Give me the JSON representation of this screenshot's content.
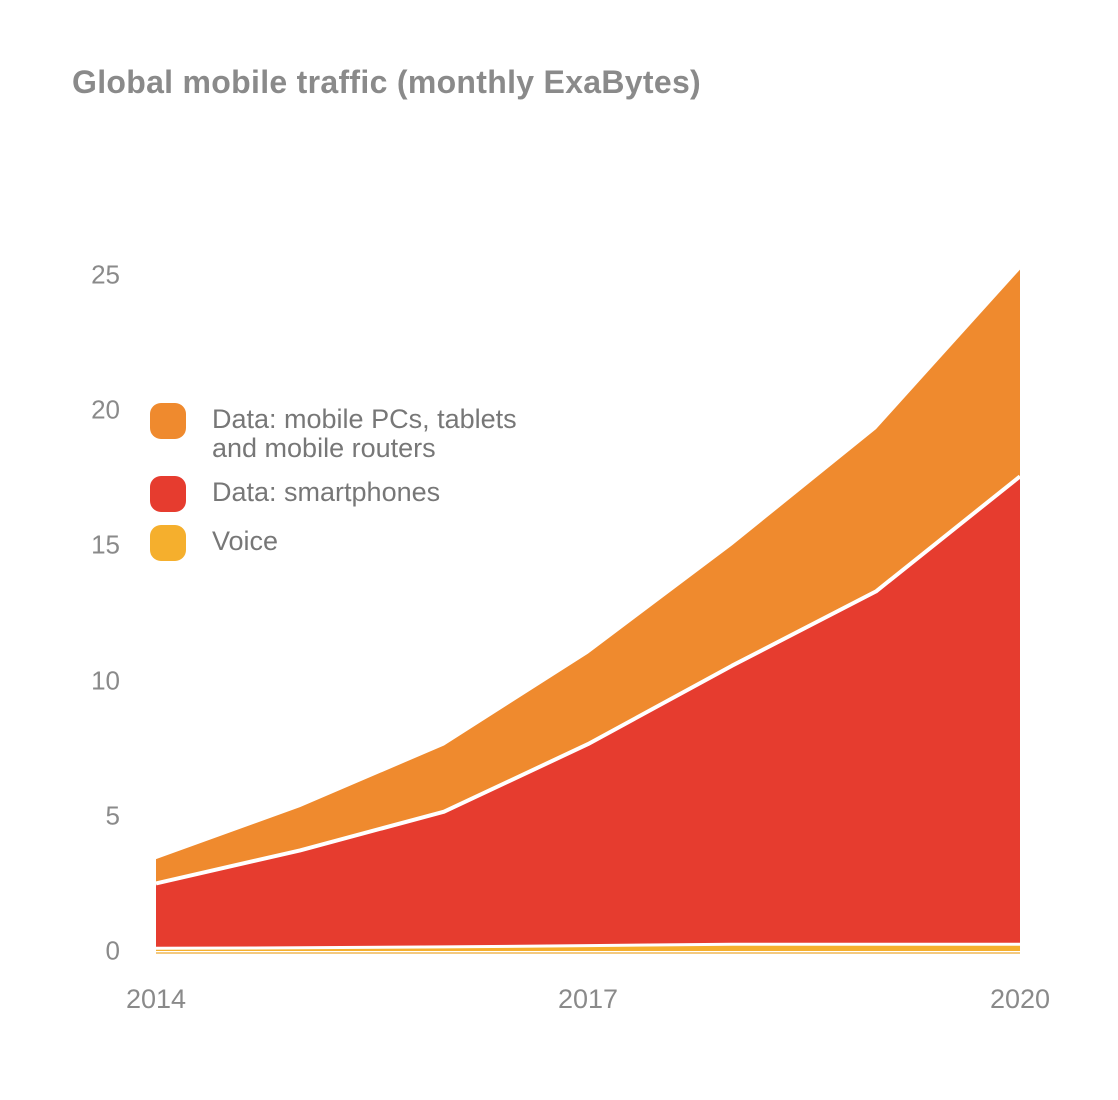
{
  "page": {
    "background": "#ffffff"
  },
  "chart": {
    "title": "Global mobile traffic (monthly ExaBytes)",
    "title_color": "#8a8a8a",
    "axis_text_color": "#8a8a8a"
  },
  "legend": {
    "items": [
      {
        "name": "mobile-pcs-tablets",
        "label": "Data: mobile PCs, tablets\nand mobile routers",
        "color": "#EF8A2E"
      },
      {
        "name": "smartphones",
        "label": "Data: smartphones",
        "color": "#E63C2F"
      },
      {
        "name": "voice",
        "label": "Voice",
        "color": "#F5AF2D"
      }
    ]
  },
  "chart_data": {
    "type": "area",
    "stacked": true,
    "title": "Global mobile traffic (monthly ExaBytes)",
    "x": [
      2014,
      2015,
      2016,
      2017,
      2018,
      2019,
      2020
    ],
    "series": [
      {
        "name": "voice",
        "label": "Voice",
        "color": "#F5AF2D",
        "values": [
          0.1,
          0.12,
          0.15,
          0.2,
          0.25,
          0.25,
          0.25
        ]
      },
      {
        "name": "smartphones",
        "label": "Data: smartphones",
        "color": "#E63C2F",
        "values": [
          2.4,
          3.6,
          5.0,
          7.45,
          10.3,
          13.05,
          17.3
        ]
      },
      {
        "name": "mobile-pcs-tablets",
        "label": "Data: mobile PCs, tablets and mobile routers",
        "color": "#EF8A2E",
        "values": [
          0.9,
          1.6,
          2.45,
          3.35,
          4.45,
          6.0,
          7.65
        ]
      }
    ],
    "totals": [
      3.4,
      5.32,
      7.6,
      11.0,
      15.0,
      19.3,
      25.2
    ],
    "xticks": [
      "2014",
      "2017",
      "2020"
    ],
    "yticks": [
      "0",
      "5",
      "10",
      "15",
      "20",
      "25"
    ],
    "ytick_values": [
      0,
      5,
      10,
      15,
      20,
      25
    ],
    "xtick_values": [
      2014,
      2017,
      2020
    ],
    "xlim": [
      2014,
      2020
    ],
    "ylim": [
      0,
      25
    ],
    "xlabel": "",
    "ylabel": "",
    "grid": false,
    "legend_position": "upper-left-inside",
    "separator_color": "#ffffff",
    "baseline_color": "#f3c97f"
  }
}
